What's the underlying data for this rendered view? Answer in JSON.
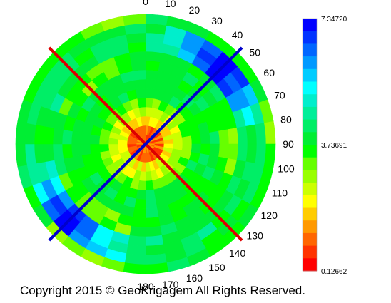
{
  "chart_data": {
    "type": "heatmap",
    "projection": "polar",
    "angle_labels": [
      "0",
      "10",
      "20",
      "30",
      "40",
      "50",
      "60",
      "70",
      "80",
      "90",
      "100",
      "110",
      "120",
      "130",
      "140",
      "150",
      "160",
      "170",
      "180"
    ],
    "angle_values": [
      0,
      10,
      20,
      30,
      40,
      50,
      60,
      70,
      80,
      90,
      100,
      110,
      120,
      130,
      140,
      150,
      160,
      170,
      180
    ],
    "color_scale": {
      "min": 0.12662,
      "mid": 3.73691,
      "max": 7.3472,
      "min_label": "0.12662",
      "mid_label": "3.73691",
      "max_label": "7.34720",
      "colors": [
        "#ff0000",
        "#ff3300",
        "#ff6600",
        "#ff9900",
        "#ffcc00",
        "#ffff00",
        "#ccff00",
        "#99ff00",
        "#66ff00",
        "#00ff00",
        "#00ee33",
        "#00ee66",
        "#00ee99",
        "#00eecc",
        "#00ffff",
        "#00ccff",
        "#0099ff",
        "#0066ff",
        "#0033ff",
        "#0000ff"
      ]
    },
    "lines": [
      {
        "color": "#dd0000",
        "from_angle": -45,
        "to_angle": 135
      },
      {
        "color": "#0000cc",
        "from_angle": 45,
        "to_angle": 225
      }
    ]
  },
  "copyright": "Copyright 2015 © GeoKrigagem All Rights Reserved."
}
